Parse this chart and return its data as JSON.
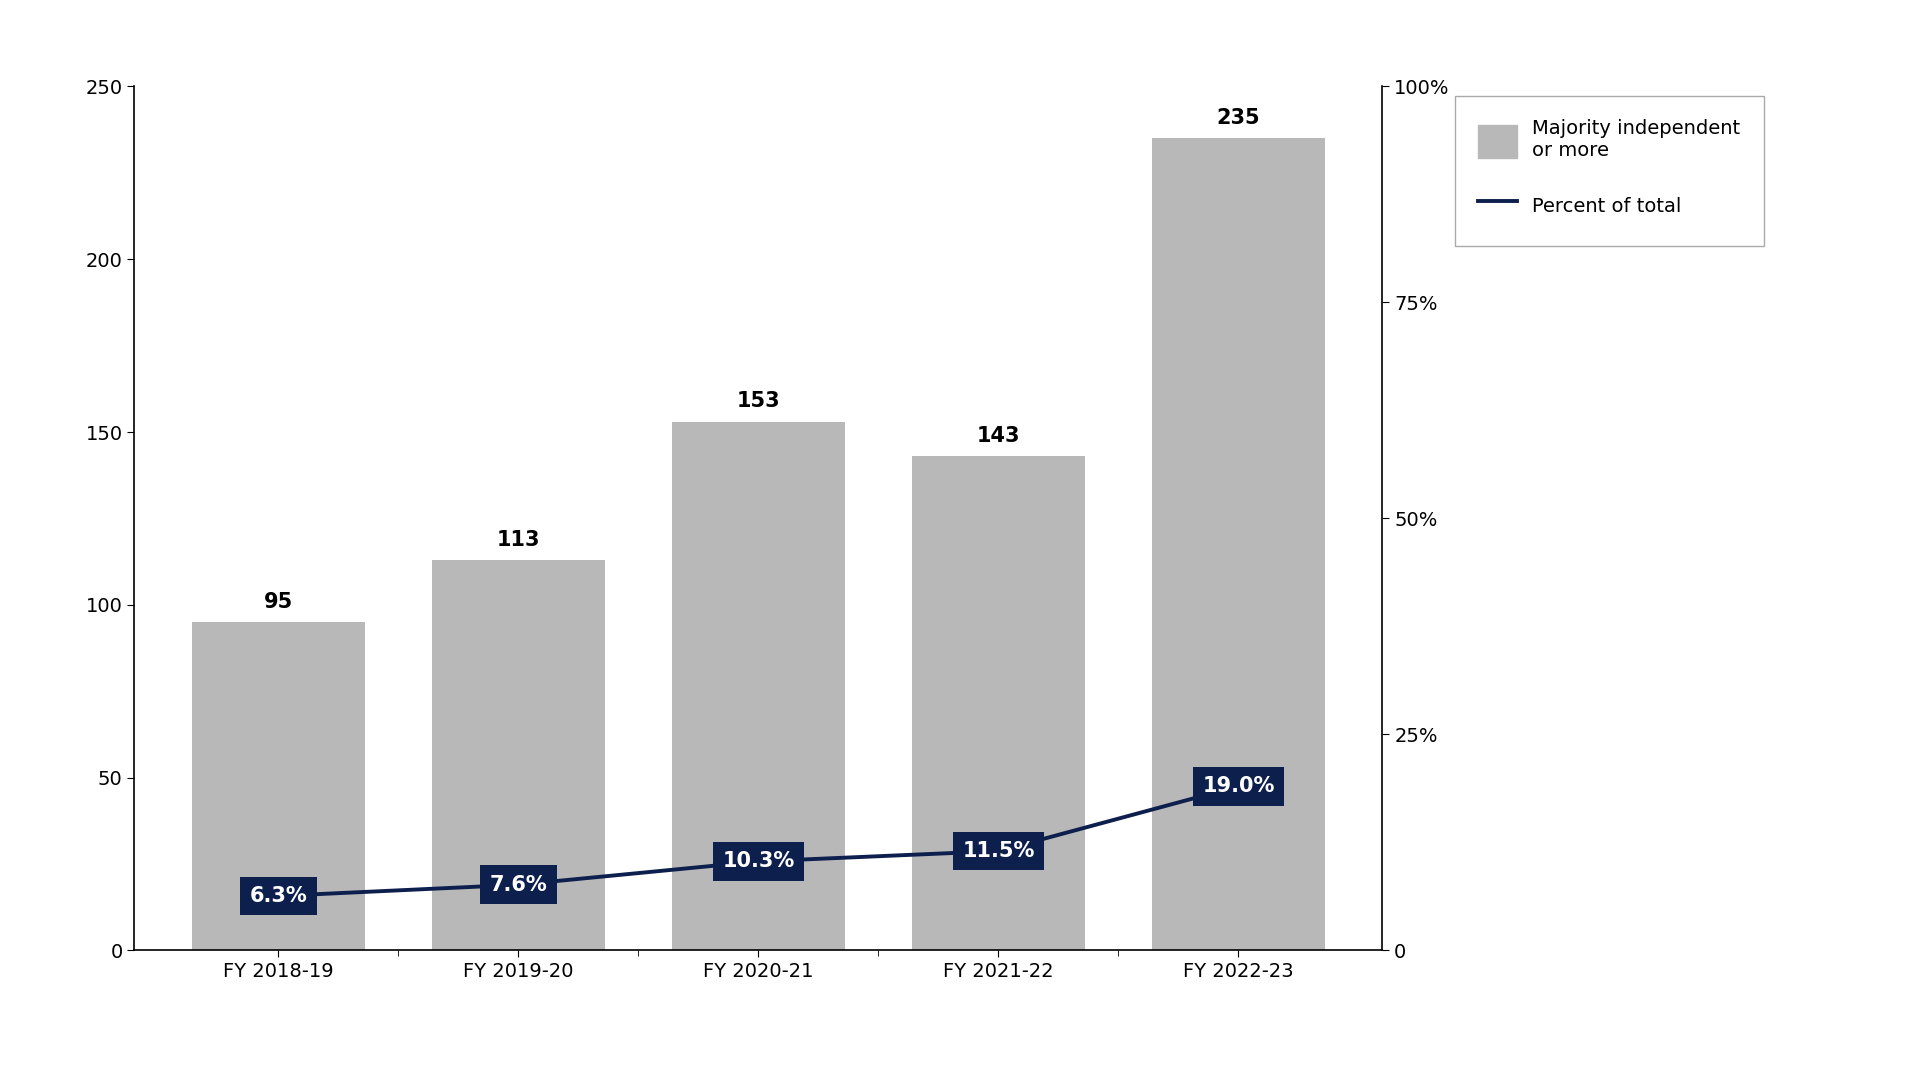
{
  "categories": [
    "FY 2018-19",
    "FY 2019-20",
    "FY 2020-21",
    "FY 2021-22",
    "FY 2022-23"
  ],
  "bar_values": [
    95,
    113,
    153,
    143,
    235
  ],
  "pct_values": [
    6.3,
    7.6,
    10.3,
    11.5,
    19.0
  ],
  "pct_labels": [
    "6.3%",
    "7.6%",
    "10.3%",
    "11.5%",
    "19.0%"
  ],
  "bar_color": "#b8b8b8",
  "line_color": "#0d1f4c",
  "label_bg_color": "#0d1f4c",
  "label_text_color": "#ffffff",
  "background_color": "#ffffff",
  "ylim_left": [
    0,
    250
  ],
  "ylim_right": [
    0,
    100
  ],
  "yticks_left": [
    0,
    50,
    100,
    150,
    200,
    250
  ],
  "yticks_right": [
    0,
    25,
    50,
    75,
    100
  ],
  "ytick_labels_right": [
    "0",
    "25%",
    "50%",
    "75%",
    "100%"
  ],
  "legend_bar_label": "Majority independent\nor more",
  "legend_line_label": "Percent of total",
  "bar_label_fontsize": 15,
  "axis_tick_fontsize": 14,
  "legend_fontsize": 14
}
